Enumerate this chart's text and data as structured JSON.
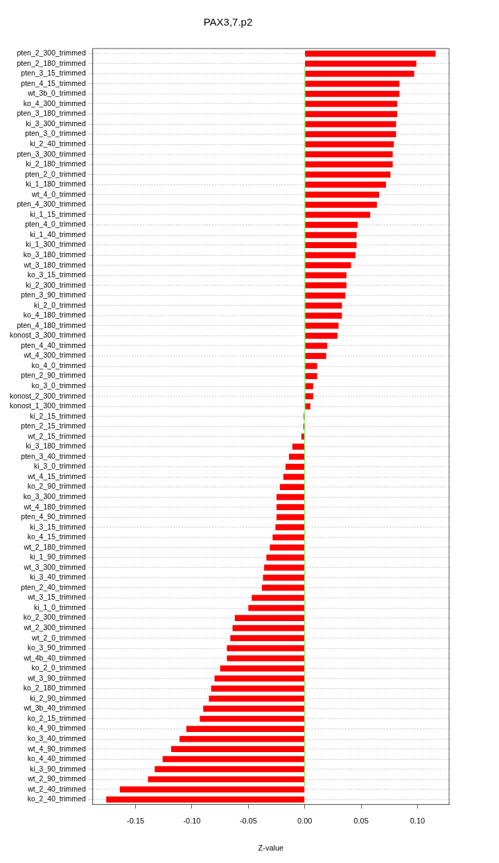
{
  "chart_data": {
    "type": "bar",
    "orientation": "horizontal",
    "title": "PAX3,7.p2",
    "xlabel": "Z-value",
    "categories": [
      "pten_2_300_trimmed",
      "pten_2_180_trimmed",
      "pten_3_15_trimmed",
      "pten_4_15_trimmed",
      "wt_3b_0_trimmed",
      "ko_4_300_trimmed",
      "pten_3_180_trimmed",
      "ki_3_300_trimmed",
      "pten_3_0_trimmed",
      "ki_2_40_trimmed",
      "pten_3_300_trimmed",
      "ki_2_180_trimmed",
      "pten_2_0_trimmed",
      "ki_1_180_trimmed",
      "wt_4_0_trimmed",
      "pten_4_300_trimmed",
      "ki_1_15_trimmed",
      "pten_4_0_trimmed",
      "ki_1_40_trimmed",
      "ki_1_300_trimmed",
      "ko_3_180_trimmed",
      "wt_3_180_trimmed",
      "ko_3_15_trimmed",
      "ki_2_300_trimmed",
      "pten_3_90_trimmed",
      "ki_2_0_trimmed",
      "ko_4_180_trimmed",
      "pten_4_180_trimmed",
      "konost_3_300_trimmed",
      "pten_4_40_trimmed",
      "wt_4_300_trimmed",
      "ko_4_0_trimmed",
      "pten_2_90_trimmed",
      "ko_3_0_trimmed",
      "konost_2_300_trimmed",
      "konost_1_300_trimmed",
      "ki_2_15_trimmed",
      "pten_2_15_trimmed",
      "wt_2_15_trimmed",
      "ki_3_180_trimmed",
      "pten_3_40_trimmed",
      "ki_3_0_trimmed",
      "wt_4_15_trimmed",
      "ko_2_90_trimmed",
      "ko_3_300_trimmed",
      "wt_4_180_trimmed",
      "pten_4_90_trimmed",
      "ki_3_15_trimmed",
      "ko_4_15_trimmed",
      "wt_2_180_trimmed",
      "ki_1_90_trimmed",
      "wt_3_300_trimmed",
      "ki_3_40_trimmed",
      "pten_2_40_trimmed",
      "wt_3_15_trimmed",
      "ki_1_0_trimmed",
      "ko_2_300_trimmed",
      "wt_2_300_trimmed",
      "wt_2_0_trimmed",
      "ko_3_90_trimmed",
      "wt_4b_40_trimmed",
      "ko_2_0_trimmed",
      "wt_3_90_trimmed",
      "ko_2_180_trimmed",
      "ki_2_90_trimmed",
      "wt_3b_40_trimmed",
      "ko_2_15_trimmed",
      "ko_4_90_trimmed",
      "ko_3_40_trimmed",
      "wt_4_90_trimmed",
      "ko_4_40_trimmed",
      "ki_3_90_trimmed",
      "wt_2_90_trimmed",
      "wt_2_40_trimmed",
      "ko_2_40_trimmed"
    ],
    "values": [
      0.116,
      0.099,
      0.097,
      0.084,
      0.084,
      0.082,
      0.082,
      0.081,
      0.081,
      0.079,
      0.078,
      0.078,
      0.076,
      0.072,
      0.066,
      0.064,
      0.058,
      0.047,
      0.046,
      0.046,
      0.045,
      0.041,
      0.037,
      0.037,
      0.036,
      0.033,
      0.033,
      0.03,
      0.029,
      0.02,
      0.019,
      0.011,
      0.011,
      0.0075,
      0.0075,
      0.005,
      -0.001,
      -0.0012,
      -0.003,
      -0.011,
      -0.014,
      -0.017,
      -0.019,
      -0.022,
      -0.025,
      -0.025,
      -0.025,
      -0.026,
      -0.0285,
      -0.031,
      -0.034,
      -0.036,
      -0.037,
      -0.038,
      -0.047,
      -0.05,
      -0.062,
      -0.064,
      -0.066,
      -0.069,
      -0.069,
      -0.075,
      -0.08,
      -0.083,
      -0.085,
      -0.09,
      -0.093,
      -0.105,
      -0.111,
      -0.1185,
      -0.126,
      -0.133,
      -0.139,
      -0.164,
      -0.176
    ],
    "color": "#ff0000",
    "xlim": [
      -0.188,
      0.128
    ],
    "xticks": [
      {
        "value": -0.15,
        "label": "-0.15"
      },
      {
        "value": -0.1,
        "label": "-0.10"
      },
      {
        "value": -0.05,
        "label": "-0.05"
      },
      {
        "value": 0,
        "label": "0.00"
      },
      {
        "value": 0.05,
        "label": "0.05"
      },
      {
        "value": 0.1,
        "label": "0.10"
      }
    ],
    "grid": "y",
    "ref_lines": [
      {
        "axis": "x",
        "value": 0,
        "color": "#7fff7f"
      }
    ]
  }
}
